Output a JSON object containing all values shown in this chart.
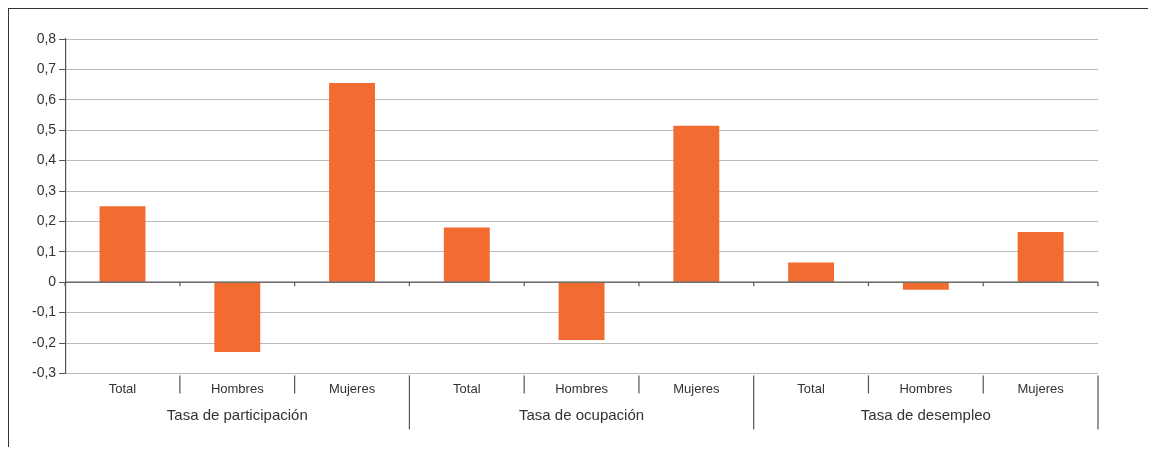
{
  "chart_data": {
    "type": "bar",
    "categories": [
      "Total",
      "Hombres",
      "Mujeres",
      "Total",
      "Hombres",
      "Mujeres",
      "Total",
      "Hombres",
      "Mujeres"
    ],
    "values": [
      0.25,
      -0.23,
      0.655,
      0.18,
      -0.19,
      0.515,
      0.065,
      -0.025,
      0.165
    ],
    "color": "#f26b30",
    "ylim": [
      -0.3,
      0.8
    ],
    "yticks": [
      {
        "value": -0.3,
        "label": "-0,3"
      },
      {
        "value": -0.2,
        "label": "-0,2"
      },
      {
        "value": -0.1,
        "label": "-0,1"
      },
      0,
      {
        "value": 0.1,
        "label": "0,1"
      },
      {
        "value": 0.2,
        "label": "0,2"
      },
      {
        "value": 0.3,
        "label": "0,3"
      },
      {
        "value": 0.4,
        "label": "0,4"
      },
      {
        "value": 0.5,
        "label": "0,5"
      },
      {
        "value": 0.6,
        "label": "0,6"
      },
      {
        "value": 0.7,
        "label": "0,7"
      },
      {
        "value": 0.8,
        "label": "0,8"
      }
    ],
    "grid": "y",
    "annotations": [
      "Tasa de participación",
      "Tasa de ocupación",
      "Tasa de desempleo"
    ]
  }
}
